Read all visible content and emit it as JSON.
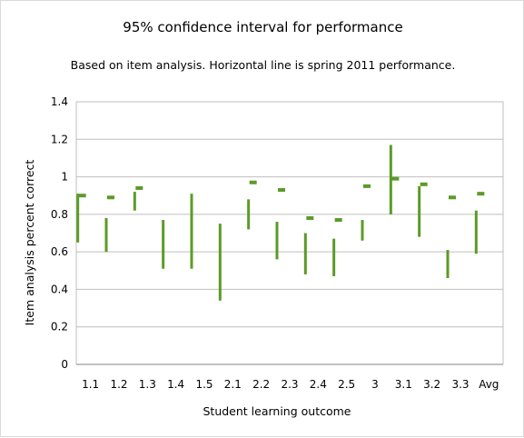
{
  "chart_data": {
    "type": "range",
    "title": "95% confidence interval for performance",
    "subtitle": "Based on item analysis. Horizontal line is spring 2011 performance.",
    "xlabel": "Student learning outcome",
    "ylabel": "Item analysis percent correct",
    "ylim": [
      0,
      1.4
    ],
    "yticks": [
      "0",
      "0.2",
      "0.4",
      "0.6",
      "0.8",
      "1",
      "1.2",
      "1.4"
    ],
    "grid": true,
    "categories": [
      "1.1",
      "1.2",
      "1.3",
      "1.4",
      "1.5",
      "2.1",
      "2.2",
      "2.3",
      "2.4",
      "2.5",
      "3",
      "3.1",
      "3.2",
      "3.3",
      "Avg"
    ],
    "lower": [
      0.65,
      0.6,
      0.82,
      0.51,
      0.51,
      0.34,
      0.72,
      0.56,
      0.48,
      0.47,
      0.66,
      0.8,
      0.68,
      0.46,
      0.59
    ],
    "upper": [
      0.91,
      0.78,
      0.92,
      0.77,
      0.91,
      0.75,
      0.88,
      0.76,
      0.7,
      0.67,
      0.77,
      1.17,
      0.95,
      0.61,
      0.82
    ],
    "spring_2011": [
      0.9,
      0.89,
      0.94,
      null,
      null,
      null,
      0.97,
      0.93,
      0.78,
      0.77,
      0.95,
      0.99,
      0.96,
      0.89,
      0.91
    ],
    "color": "#5b9b27"
  }
}
